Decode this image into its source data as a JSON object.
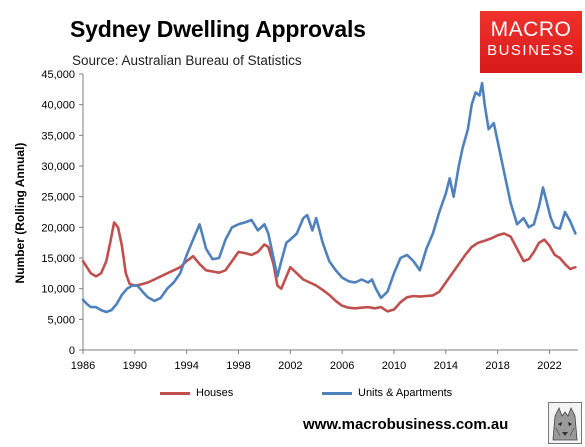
{
  "header": {
    "title": "Sydney Dwelling Approvals",
    "subtitle": "Source: Australian Bureau of Statistics"
  },
  "logo": {
    "line1": "MACRO",
    "line2": "BUSINESS",
    "color": "#e52222"
  },
  "footer": {
    "website": "www.macrobusiness.com.au"
  },
  "chart_data": {
    "type": "line",
    "title": "Sydney Dwelling Approvals",
    "xlabel": "",
    "ylabel": "Number (Rolling Annual)",
    "xlim": [
      1986,
      2024.2
    ],
    "ylim": [
      0,
      45000
    ],
    "x_ticks": [
      1986,
      1990,
      1994,
      1998,
      2002,
      2006,
      2010,
      2014,
      2018,
      2022
    ],
    "y_ticks": [
      0,
      5000,
      10000,
      15000,
      20000,
      25000,
      30000,
      35000,
      40000,
      45000
    ],
    "y_tick_labels": [
      "0",
      "5,000",
      "10,000",
      "15,000",
      "20,000",
      "25,000",
      "30,000",
      "35,000",
      "40,000",
      "45,000"
    ],
    "grid": false,
    "legend_position": "bottom",
    "series": [
      {
        "name": "Houses",
        "color": "#c0504d",
        "x": [
          1986,
          1986.3,
          1986.6,
          1987,
          1987.4,
          1987.8,
          1988.1,
          1988.4,
          1988.7,
          1989,
          1989.3,
          1989.6,
          1990,
          1990.5,
          1991,
          1991.5,
          1992,
          1992.5,
          1993,
          1993.5,
          1994,
          1994.5,
          1995,
          1995.5,
          1996,
          1996.5,
          1997,
          1997.5,
          1998,
          1998.5,
          1999,
          1999.5,
          2000,
          2000.3,
          2000.7,
          2001,
          2001.3,
          2001.7,
          2002,
          2002.5,
          2003,
          2003.5,
          2004,
          2004.5,
          2005,
          2005.5,
          2006,
          2006.5,
          2007,
          2007.5,
          2008,
          2008.5,
          2009,
          2009.5,
          2010,
          2010.5,
          2011,
          2011.5,
          2012,
          2012.5,
          2013,
          2013.5,
          2014,
          2014.5,
          2015,
          2015.5,
          2016,
          2016.5,
          2017,
          2017.5,
          2018,
          2018.5,
          2019,
          2019.5,
          2020,
          2020.4,
          2020.8,
          2021.2,
          2021.6,
          2022,
          2022.4,
          2022.8,
          2023.2,
          2023.6,
          2024
        ],
        "y": [
          14500,
          13500,
          12500,
          12000,
          12500,
          14500,
          17500,
          20800,
          20000,
          17000,
          12500,
          10800,
          10500,
          10700,
          11000,
          11500,
          12000,
          12500,
          13000,
          13500,
          14500,
          15300,
          14000,
          13000,
          12800,
          12600,
          13000,
          14500,
          16000,
          15800,
          15500,
          16000,
          17200,
          16800,
          14000,
          10500,
          10000,
          12000,
          13500,
          12500,
          11500,
          11000,
          10500,
          9800,
          9000,
          8000,
          7200,
          6900,
          6800,
          6900,
          7000,
          6800,
          7000,
          6300,
          6600,
          7800,
          8600,
          8800,
          8700,
          8800,
          8900,
          9500,
          11000,
          12500,
          14000,
          15500,
          16800,
          17500,
          17800,
          18200,
          18700,
          19000,
          18500,
          16500,
          14500,
          14800,
          16000,
          17500,
          18000,
          17000,
          15500,
          15000,
          14000,
          13200,
          13500
        ]
      },
      {
        "name": "Units & Apartments",
        "color": "#4f81bd",
        "x": [
          1986,
          1986.3,
          1986.6,
          1987,
          1987.4,
          1987.8,
          1988.2,
          1988.6,
          1989,
          1989.4,
          1989.8,
          1990.2,
          1990.6,
          1991,
          1991.5,
          1992,
          1992.5,
          1993,
          1993.5,
          1994,
          1994.5,
          1995,
          1995.5,
          1996,
          1996.5,
          1997,
          1997.5,
          1998,
          1998.5,
          1999,
          1999.5,
          2000,
          2000.3,
          2000.7,
          2001,
          2001.3,
          2001.7,
          2002,
          2002.5,
          2003,
          2003.3,
          2003.7,
          2004,
          2004.5,
          2005,
          2005.5,
          2006,
          2006.5,
          2007,
          2007.5,
          2008,
          2008.3,
          2008.6,
          2009,
          2009.5,
          2010,
          2010.5,
          2011,
          2011.5,
          2012,
          2012.5,
          2013,
          2013.5,
          2014,
          2014.3,
          2014.6,
          2015,
          2015.3,
          2015.7,
          2016,
          2016.3,
          2016.6,
          2016.8,
          2017,
          2017.3,
          2017.7,
          2018,
          2018.3,
          2018.7,
          2019,
          2019.5,
          2020,
          2020.4,
          2020.8,
          2021.2,
          2021.5,
          2021.8,
          2022.1,
          2022.4,
          2022.8,
          2023.2,
          2023.6,
          2024
        ],
        "y": [
          8200,
          7500,
          7000,
          7000,
          6500,
          6200,
          6500,
          7500,
          9000,
          10000,
          10500,
          10500,
          9500,
          8600,
          8000,
          8500,
          10000,
          11000,
          12500,
          15500,
          18000,
          20500,
          16500,
          14800,
          15000,
          18000,
          20000,
          20500,
          20800,
          21200,
          19500,
          20500,
          19000,
          15000,
          12000,
          14500,
          17500,
          18000,
          19000,
          21500,
          22000,
          19500,
          21500,
          17500,
          14500,
          13000,
          11800,
          11200,
          11000,
          11500,
          11000,
          11500,
          10000,
          8500,
          9500,
          12500,
          15000,
          15500,
          14500,
          13000,
          16500,
          19000,
          22500,
          25500,
          28000,
          25000,
          30000,
          33000,
          36000,
          40000,
          42000,
          41500,
          43500,
          40000,
          36000,
          37000,
          34000,
          31000,
          27000,
          24000,
          20500,
          21500,
          20000,
          20500,
          23500,
          26500,
          24000,
          21500,
          20000,
          19800,
          22500,
          21000,
          19000
        ]
      }
    ]
  }
}
